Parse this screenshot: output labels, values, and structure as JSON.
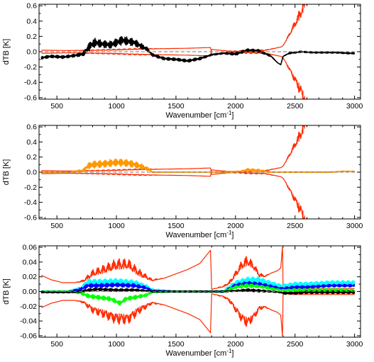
{
  "chart_data": [
    {
      "type": "line",
      "title": "",
      "xlabel": "Wavenumber [cm",
      "xlabel_sup": "-1",
      "xlabel_end": "]",
      "ylabel": "dTB [K]",
      "xlim": [
        350,
        3050
      ],
      "ylim": [
        -0.62,
        0.62
      ],
      "xticks": [
        500,
        1000,
        1500,
        2000,
        2500,
        3000
      ],
      "yticks": [
        -0.6,
        -0.4,
        -0.2,
        0.0,
        0.2,
        0.4,
        0.6
      ],
      "ytick_labels": [
        "-0.6",
        "-0.4",
        "-0.2",
        "0.0",
        "0.2",
        "0.4",
        "0.6"
      ],
      "zero_line": "dashed",
      "series": [
        {
          "color": "#ff2a00",
          "role": "envelope",
          "x": [
            370,
            600,
            800,
            1000,
            1200,
            1400,
            1600,
            1790,
            1800,
            1950,
            2100,
            2250,
            2380,
            2400,
            2450,
            2550,
            2600,
            2700,
            2800,
            2900,
            3000
          ],
          "y": [
            0.02,
            0.015,
            0.015,
            0.02,
            0.03,
            0.04,
            0.045,
            0.055,
            -0.03,
            -0.005,
            0.005,
            0.015,
            0.06,
            0.08,
            0.2,
            0.45,
            0.62,
            0.62,
            0.62,
            0.62,
            0.62
          ],
          "noise": [
            0,
            0,
            0.01,
            0.015,
            0.015,
            0,
            0,
            0,
            0,
            0.005,
            0.02,
            0.01,
            0,
            0,
            0.04,
            0.15,
            0.25,
            0.25,
            0.25,
            0.25,
            0.25
          ],
          "mirror": true
        },
        {
          "color": "#000000",
          "role": "difference",
          "x": [
            370,
            450,
            550,
            650,
            720,
            780,
            820,
            880,
            950,
            1050,
            1150,
            1200,
            1260,
            1300,
            1400,
            1500,
            1600,
            1700,
            1800,
            1900,
            2000,
            2100,
            2200,
            2300,
            2350,
            2380,
            2400,
            2450,
            2550,
            2650,
            2750,
            2850,
            2950,
            3000
          ],
          "y": [
            -0.08,
            -0.06,
            -0.07,
            -0.05,
            -0.03,
            0.08,
            0.12,
            0.1,
            0.09,
            0.15,
            0.12,
            0.08,
            0.03,
            -0.04,
            -0.09,
            -0.1,
            -0.12,
            -0.09,
            -0.04,
            -0.02,
            -0.03,
            0.02,
            0.01,
            -0.06,
            -0.14,
            -0.17,
            -0.06,
            -0.02,
            0.0,
            -0.01,
            -0.01,
            -0.01,
            -0.02,
            -0.02
          ],
          "noise": [
            0.02,
            0.02,
            0.02,
            0.02,
            0.03,
            0.06,
            0.06,
            0.05,
            0.05,
            0.06,
            0.05,
            0.04,
            0.03,
            0.02,
            0.02,
            0.02,
            0.02,
            0.02,
            0.01,
            0.01,
            0.02,
            0.02,
            0.02,
            0.01,
            0,
            0,
            0,
            0.01,
            0.01,
            0.01,
            0.01,
            0.01,
            0.01,
            0.01
          ]
        }
      ]
    },
    {
      "type": "line",
      "title": "",
      "xlabel": "Wavenumber [cm",
      "xlabel_sup": "-1",
      "xlabel_end": "]",
      "ylabel": "dTB [K]",
      "xlim": [
        350,
        3050
      ],
      "ylim": [
        -0.62,
        0.62
      ],
      "xticks": [
        500,
        1000,
        1500,
        2000,
        2500,
        3000
      ],
      "yticks": [
        -0.6,
        -0.4,
        -0.2,
        0.0,
        0.2,
        0.4,
        0.6
      ],
      "ytick_labels": [
        "-0.6",
        "-0.4",
        "-0.2",
        "0.0",
        "0.2",
        "0.4",
        "0.6"
      ],
      "zero_line": "dashed",
      "series": [
        {
          "color": "#ff2a00",
          "role": "envelope",
          "x": [
            370,
            600,
            800,
            1000,
            1200,
            1400,
            1600,
            1790,
            1800,
            1950,
            2100,
            2250,
            2380,
            2400,
            2450,
            2550,
            2600,
            2700,
            2800,
            2900,
            3000
          ],
          "y": [
            0.02,
            0.015,
            0.015,
            0.02,
            0.03,
            0.04,
            0.045,
            0.055,
            -0.03,
            -0.005,
            0.005,
            0.015,
            0.06,
            0.08,
            0.2,
            0.45,
            0.62,
            0.62,
            0.62,
            0.62,
            0.62
          ],
          "noise": [
            0,
            0,
            0.01,
            0.015,
            0.015,
            0,
            0,
            0,
            0,
            0.005,
            0.02,
            0.01,
            0,
            0,
            0.04,
            0.15,
            0.25,
            0.25,
            0.25,
            0.25,
            0.25
          ],
          "mirror": true
        },
        {
          "color": "#ff9900",
          "role": "difference",
          "x": [
            370,
            600,
            720,
            760,
            800,
            900,
            1000,
            1100,
            1200,
            1280,
            1300,
            1400,
            1600,
            1800,
            1950,
            2050,
            2100,
            2200,
            2300,
            2380,
            2400,
            2500,
            2600,
            2700,
            2800,
            2900,
            3000
          ],
          "y": [
            0.0,
            0.0,
            0.02,
            0.08,
            0.1,
            0.11,
            0.13,
            0.12,
            0.08,
            0.03,
            0.0,
            0.0,
            0.0,
            0.0,
            0.0,
            0.01,
            0.03,
            0.02,
            0.0,
            0.0,
            0.0,
            0.0,
            0.0,
            0.0,
            0.0,
            0.01,
            0.01
          ],
          "noise": [
            0.005,
            0.005,
            0.02,
            0.04,
            0.05,
            0.05,
            0.05,
            0.05,
            0.04,
            0.02,
            0.005,
            0.003,
            0.003,
            0.003,
            0.01,
            0.01,
            0.02,
            0.02,
            0.005,
            0.003,
            0.005,
            0.005,
            0.005,
            0.005,
            0.005,
            0.005,
            0.005
          ]
        }
      ]
    },
    {
      "type": "line",
      "title": "",
      "xlabel": "Wavenumber [cm",
      "xlabel_sup": "-1",
      "xlabel_end": "]",
      "ylabel": "dTB [K]",
      "xlim": [
        350,
        3050
      ],
      "ylim": [
        -0.062,
        0.062
      ],
      "xticks": [
        500,
        1000,
        1500,
        2000,
        2500,
        3000
      ],
      "yticks": [
        -0.06,
        -0.04,
        -0.02,
        0.0,
        0.02,
        0.04,
        0.06
      ],
      "ytick_labels": [
        "-0.06",
        "-0.04",
        "-0.02",
        "0.00",
        "0.02",
        "0.04",
        "0.06"
      ],
      "zero_line": "dashed",
      "series": [
        {
          "color": "#ff2a00",
          "role": "envelope",
          "x": [
            370,
            450,
            550,
            650,
            720,
            800,
            900,
            1000,
            1100,
            1200,
            1300,
            1400,
            1500,
            1600,
            1700,
            1790,
            1800,
            1900,
            1950,
            2000,
            2050,
            2100,
            2150,
            2200,
            2250,
            2300,
            2350,
            2380,
            2395,
            2400,
            2500,
            2600,
            2700,
            2800,
            2900,
            3000
          ],
          "y": [
            0.022,
            0.016,
            0.012,
            0.012,
            0.013,
            0.02,
            0.025,
            0.03,
            0.03,
            0.02,
            0.014,
            0.018,
            0.024,
            0.03,
            0.038,
            0.056,
            0.003,
            0.006,
            0.01,
            0.02,
            0.03,
            0.035,
            0.03,
            0.02,
            0.02,
            0.025,
            0.028,
            0.032,
            0.062,
            0.003,
            0.004,
            0.004,
            0.004,
            0.004,
            0.004,
            0.004
          ],
          "noise": [
            0,
            0,
            0,
            0,
            0.003,
            0.01,
            0.012,
            0.015,
            0.015,
            0.01,
            0.003,
            0,
            0,
            0,
            0,
            0,
            0,
            0.002,
            0.005,
            0.008,
            0.012,
            0.015,
            0.01,
            0.006,
            0.002,
            0,
            0,
            0,
            0,
            0,
            0,
            0,
            0,
            0,
            0,
            0
          ],
          "mirror": true
        },
        {
          "color": "#00ffff",
          "role": "difference",
          "x": [
            370,
            600,
            700,
            760,
            850,
            1000,
            1150,
            1250,
            1300,
            1500,
            1800,
            1900,
            1950,
            2000,
            2100,
            2200,
            2300,
            2380,
            2400,
            2500,
            2600,
            2700,
            2800,
            2900,
            3000
          ],
          "y": [
            0.0,
            0.0,
            0.004,
            0.013,
            0.013,
            0.014,
            0.012,
            0.007,
            0.002,
            0.0,
            0.0,
            0.0,
            0.006,
            0.011,
            0.016,
            0.016,
            0.011,
            0.008,
            0.008,
            0.01,
            0.01,
            0.011,
            0.012,
            0.012,
            0.012
          ],
          "noise": [
            0.001,
            0.001,
            0.003,
            0.004,
            0.004,
            0.004,
            0.004,
            0.003,
            0.002,
            0.001,
            0.001,
            0.002,
            0.003,
            0.004,
            0.004,
            0.004,
            0.003,
            0.002,
            0.002,
            0.003,
            0.003,
            0.003,
            0.003,
            0.003,
            0.003
          ]
        },
        {
          "color": "#0000ff",
          "role": "difference",
          "x": [
            370,
            600,
            700,
            760,
            850,
            1000,
            1150,
            1250,
            1300,
            1500,
            1800,
            1900,
            1950,
            2000,
            2100,
            2200,
            2300,
            2380,
            2400,
            2500,
            2600,
            2700,
            2800,
            2900,
            3000
          ],
          "y": [
            0.0,
            0.0,
            0.003,
            0.008,
            0.008,
            0.009,
            0.008,
            0.005,
            0.001,
            0.0,
            0.0,
            0.0,
            0.004,
            0.008,
            0.011,
            0.01,
            0.007,
            0.004,
            0.004,
            0.006,
            0.006,
            0.007,
            0.008,
            0.008,
            0.008
          ],
          "noise": [
            0.001,
            0.001,
            0.002,
            0.003,
            0.003,
            0.003,
            0.003,
            0.002,
            0.001,
            0.001,
            0.001,
            0.001,
            0.002,
            0.003,
            0.003,
            0.003,
            0.002,
            0.002,
            0.002,
            0.002,
            0.002,
            0.002,
            0.002,
            0.002,
            0.002
          ]
        },
        {
          "color": "#00ff00",
          "role": "difference",
          "x": [
            370,
            600,
            700,
            760,
            850,
            950,
            1030,
            1080,
            1150,
            1250,
            1300,
            1500,
            1800,
            1900,
            1950,
            2000,
            2100,
            2200,
            2300,
            2380,
            2400,
            2500,
            2600,
            2700,
            2800,
            2900,
            3000
          ],
          "y": [
            0.0,
            0.0,
            -0.002,
            -0.006,
            -0.008,
            -0.01,
            -0.016,
            -0.01,
            -0.008,
            -0.005,
            -0.001,
            0.0,
            0.0,
            0.0,
            0.003,
            0.006,
            0.008,
            0.007,
            0.004,
            0.002,
            0.002,
            0.002,
            0.002,
            0.002,
            0.002,
            0.002,
            0.001
          ],
          "noise": [
            0.001,
            0.001,
            0.002,
            0.003,
            0.003,
            0.003,
            0.003,
            0.003,
            0.003,
            0.002,
            0.001,
            0.001,
            0.001,
            0.001,
            0.002,
            0.002,
            0.003,
            0.002,
            0.002,
            0.001,
            0.001,
            0.002,
            0.002,
            0.002,
            0.002,
            0.002,
            0.002
          ]
        },
        {
          "color": "#000000",
          "role": "difference",
          "x": [
            370,
            600,
            700,
            760,
            850,
            1000,
            1150,
            1250,
            1300,
            1500,
            1800,
            1900,
            2000,
            2100,
            2200,
            2300,
            2380,
            2400,
            2500,
            2600,
            2700,
            2800,
            2900,
            3000
          ],
          "y": [
            -0.001,
            -0.001,
            0.0,
            0.002,
            0.003,
            0.002,
            0.002,
            0.001,
            0.0,
            0.0,
            0.0,
            0.0,
            0.001,
            0.002,
            0.001,
            0.0,
            -0.001,
            -0.002,
            -0.002,
            -0.001,
            -0.001,
            -0.001,
            -0.001,
            -0.001
          ],
          "noise": [
            0.001,
            0.001,
            0.001,
            0.002,
            0.002,
            0.002,
            0.002,
            0.001,
            0.001,
            0.001,
            0.001,
            0.001,
            0.001,
            0.002,
            0.002,
            0.001,
            0.001,
            0.002,
            0.002,
            0.002,
            0.002,
            0.002,
            0.002,
            0.002
          ]
        }
      ]
    }
  ]
}
